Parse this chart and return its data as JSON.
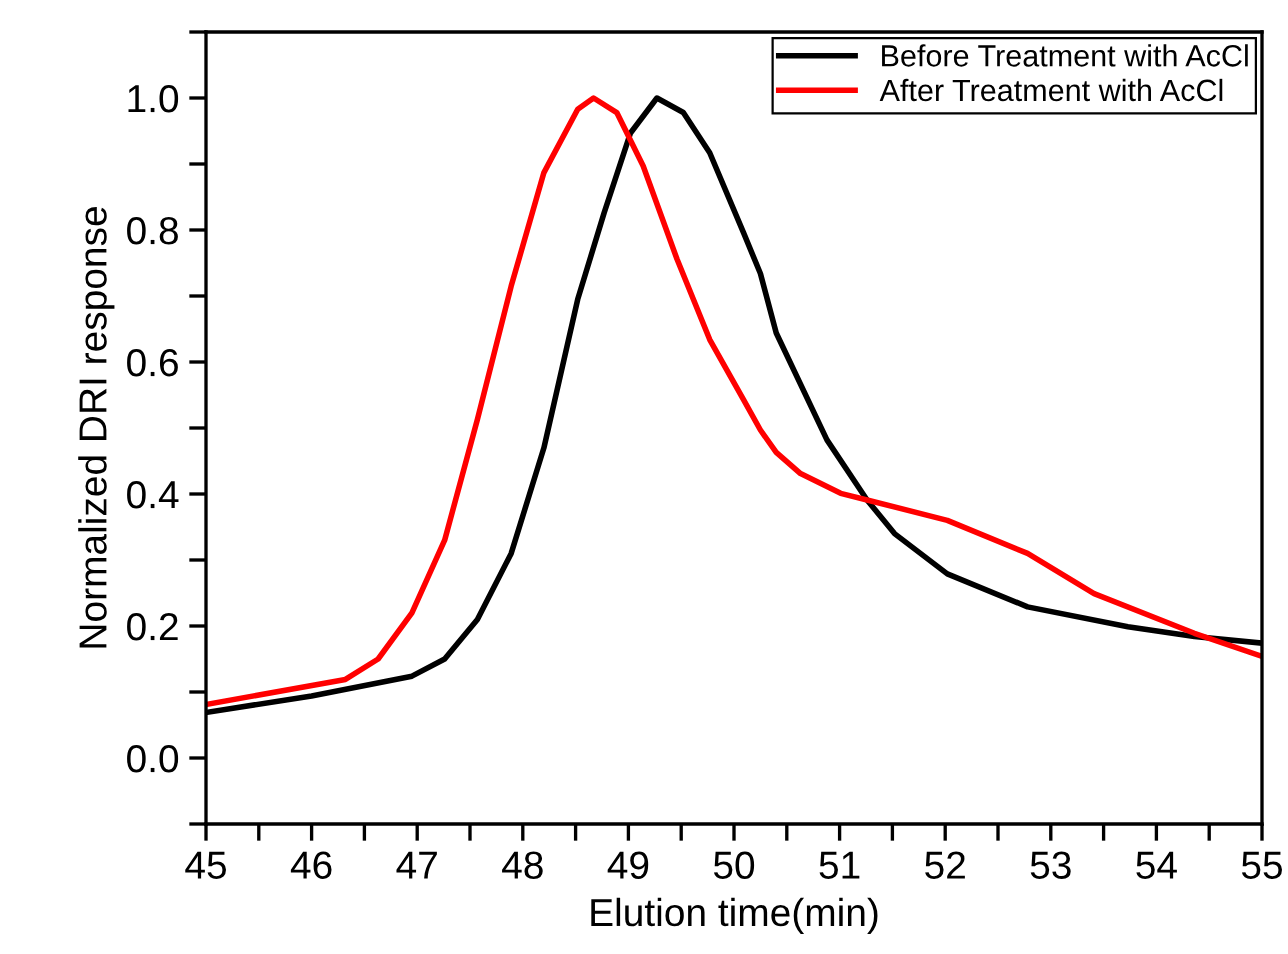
{
  "chart_data": {
    "type": "line",
    "xlabel": "Elution time(min)",
    "ylabel": "Normalized DRI response",
    "xlim": [
      45,
      55
    ],
    "ylim": [
      -0.1,
      1.1
    ],
    "xticks": [
      45,
      {
        "value": 45.5,
        "label": null
      },
      46,
      {
        "value": 46.5,
        "label": null
      },
      47,
      {
        "value": 47.5,
        "label": null
      },
      48,
      {
        "value": 48.5,
        "label": null
      },
      49,
      {
        "value": 49.5,
        "label": null
      },
      50,
      {
        "value": 50.5,
        "label": null
      },
      51,
      {
        "value": 51.5,
        "label": null
      },
      52,
      {
        "value": 52.5,
        "label": null
      },
      53,
      {
        "value": 53.5,
        "label": null
      },
      54,
      {
        "value": 54.5,
        "label": null
      },
      55
    ],
    "yticks": [
      {
        "value": -0.1,
        "label": null
      },
      {
        "value": 0.0,
        "label": "0.0"
      },
      {
        "value": 0.1,
        "label": null
      },
      0.2,
      {
        "value": 0.3,
        "label": null
      },
      0.4,
      {
        "value": 0.5,
        "label": null
      },
      0.6,
      {
        "value": 0.7,
        "label": null
      },
      0.8,
      {
        "value": 0.9,
        "label": null
      },
      {
        "value": 1.0,
        "label": "1.0"
      },
      {
        "value": 1.1,
        "label": null
      }
    ],
    "legend": "top right",
    "grid": false,
    "marker": "none",
    "line_style": "solid",
    "series": [
      {
        "name": "Before Treatment with AcCl",
        "color": "#000000",
        "x": [
          45,
          46.0,
          46.95,
          47.26,
          47.57,
          47.89,
          48.2,
          48.52,
          48.77,
          49.02,
          49.27,
          49.52,
          49.77,
          50.09,
          50.25,
          50.4,
          50.88,
          51.26,
          51.52,
          52.02,
          52.78,
          53.73,
          54.36,
          55
        ],
        "values": [
          0.069,
          0.094,
          0.124,
          0.15,
          0.21,
          0.31,
          0.47,
          0.695,
          0.826,
          0.947,
          1.0,
          0.978,
          0.917,
          0.796,
          0.734,
          0.644,
          0.482,
          0.391,
          0.34,
          0.279,
          0.229,
          0.199,
          0.184,
          0.174
        ]
      },
      {
        "name": "After Treatment with AcCl",
        "color": "#ff0000",
        "x": [
          45,
          46.32,
          46.63,
          46.95,
          47.26,
          47.57,
          47.89,
          48.2,
          48.52,
          48.67,
          48.89,
          49.14,
          49.46,
          49.77,
          50.09,
          50.25,
          50.4,
          50.63,
          51.01,
          51.26,
          52.02,
          52.78,
          53.41,
          54.36,
          55
        ],
        "values": [
          0.081,
          0.119,
          0.15,
          0.22,
          0.33,
          0.513,
          0.715,
          0.887,
          0.983,
          1.0,
          0.978,
          0.897,
          0.756,
          0.634,
          0.543,
          0.497,
          0.463,
          0.431,
          0.401,
          0.391,
          0.36,
          0.31,
          0.249,
          0.189,
          0.154
        ]
      }
    ]
  }
}
